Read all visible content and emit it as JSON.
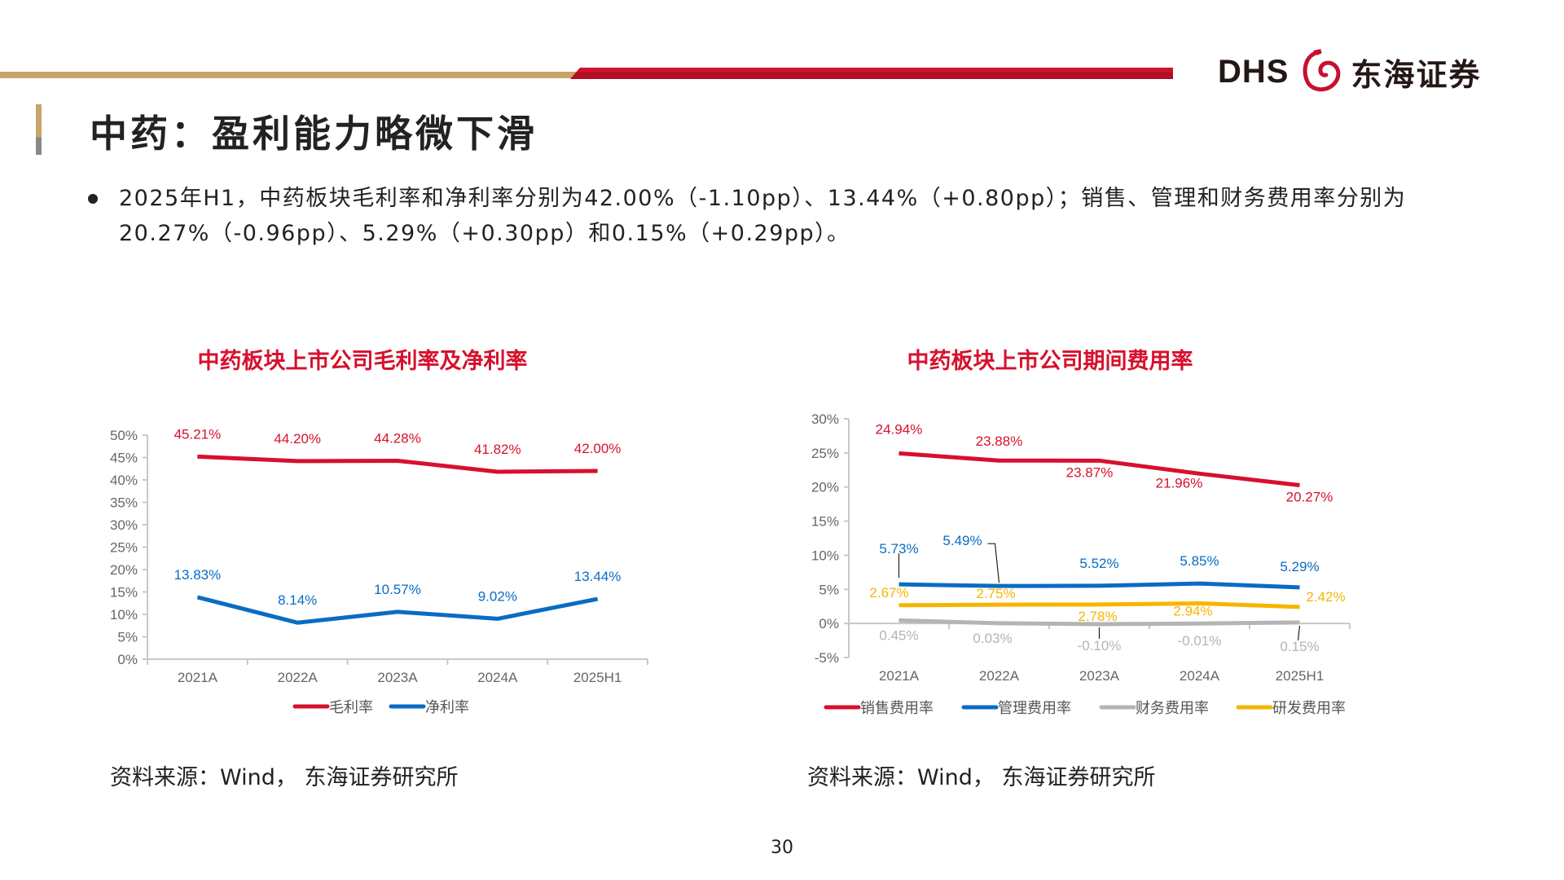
{
  "header": {
    "logo_latin": "DHS",
    "logo_cn": "东海证券",
    "colors": {
      "gold": "#c8a46a",
      "red": "#c8102e"
    }
  },
  "page_title": "中药：盈利能力略微下滑",
  "bullet": "2025年H1，中药板块毛利率和净利率分别为42.00%（-1.10pp）、13.44%（+0.80pp）；销售、管理和财务费用率分别为20.27%（-0.96pp）、5.29%（+0.30pp）和0.15%（+0.29pp）。",
  "sources": [
    "资料来源：Wind， 东海证券研究所",
    "资料来源：Wind， 东海证券研究所"
  ],
  "page_number": "30",
  "chart_data": [
    {
      "type": "line",
      "title": "中药板块上市公司毛利率及净利率",
      "categories": [
        "2021A",
        "2022A",
        "2023A",
        "2024A",
        "2025H1"
      ],
      "yticks": [
        "0%",
        "5%",
        "10%",
        "15%",
        "20%",
        "25%",
        "30%",
        "35%",
        "40%",
        "45%",
        "50%"
      ],
      "ylim": [
        0,
        50
      ],
      "legend": "bottom",
      "series": [
        {
          "name": "毛利率",
          "color": "#d7102d",
          "values": [
            45.21,
            44.2,
            44.28,
            41.82,
            42.0
          ],
          "labels": [
            "45.21%",
            "44.20%",
            "44.28%",
            "41.82%",
            "42.00%"
          ]
        },
        {
          "name": "净利率",
          "color": "#0a6cc2",
          "values": [
            13.83,
            8.14,
            10.57,
            9.02,
            13.44
          ],
          "labels": [
            "13.83%",
            "8.14%",
            "10.57%",
            "9.02%",
            "13.44%"
          ]
        }
      ]
    },
    {
      "type": "line",
      "title": "中药板块上市公司期间费用率",
      "categories": [
        "2021A",
        "2022A",
        "2023A",
        "2024A",
        "2025H1"
      ],
      "yticks": [
        "-5%",
        "0%",
        "5%",
        "10%",
        "15%",
        "20%",
        "25%",
        "30%"
      ],
      "ylim": [
        -5,
        30
      ],
      "legend": "bottom",
      "series": [
        {
          "name": "销售费用率",
          "color": "#d7102d",
          "values": [
            24.94,
            23.88,
            23.87,
            21.96,
            20.27
          ],
          "labels": [
            "24.94%",
            "23.88%",
            "23.87%",
            "21.96%",
            "20.27%"
          ]
        },
        {
          "name": "管理费用率",
          "color": "#0a6cc2",
          "values": [
            5.73,
            5.49,
            5.52,
            5.85,
            5.29
          ],
          "labels": [
            "5.73%",
            "5.49%",
            "5.52%",
            "5.85%",
            "5.29%"
          ]
        },
        {
          "name": "财务费用率",
          "color": "#b4b4b4",
          "values": [
            0.45,
            0.03,
            -0.1,
            -0.01,
            0.15
          ],
          "labels": [
            "0.45%",
            "0.03%",
            "-0.10%",
            "-0.01%",
            "0.15%"
          ]
        },
        {
          "name": "研发费用率",
          "color": "#f7b500",
          "values": [
            2.67,
            2.75,
            2.78,
            2.94,
            2.42
          ],
          "labels": [
            "2.67%",
            "2.75%",
            "2.78%",
            "2.94%",
            "2.42%"
          ]
        }
      ]
    }
  ]
}
